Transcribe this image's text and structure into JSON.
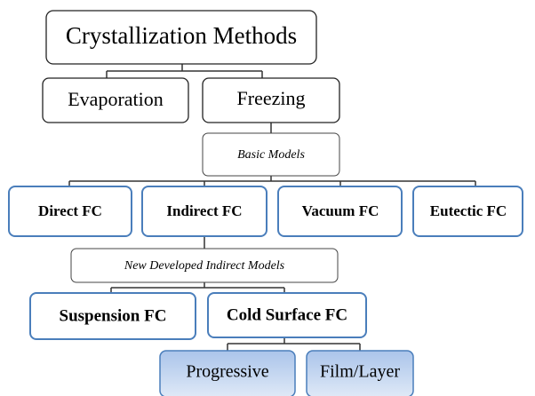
{
  "nodes": [
    {
      "label": "Crystallization Methods"
    },
    {
      "label": "Evaporation"
    },
    {
      "label": "Freezing"
    },
    {
      "label": "Basic Models"
    },
    {
      "label": "Direct FC"
    },
    {
      "label": "Indirect FC"
    },
    {
      "label": "Vacuum FC"
    },
    {
      "label": "Eutectic FC"
    },
    {
      "label": "New Developed Indirect Models"
    },
    {
      "label": "Suspension FC"
    },
    {
      "label": "Cold Surface FC"
    },
    {
      "label": "Progressive"
    },
    {
      "label": "Film/Layer"
    }
  ]
}
